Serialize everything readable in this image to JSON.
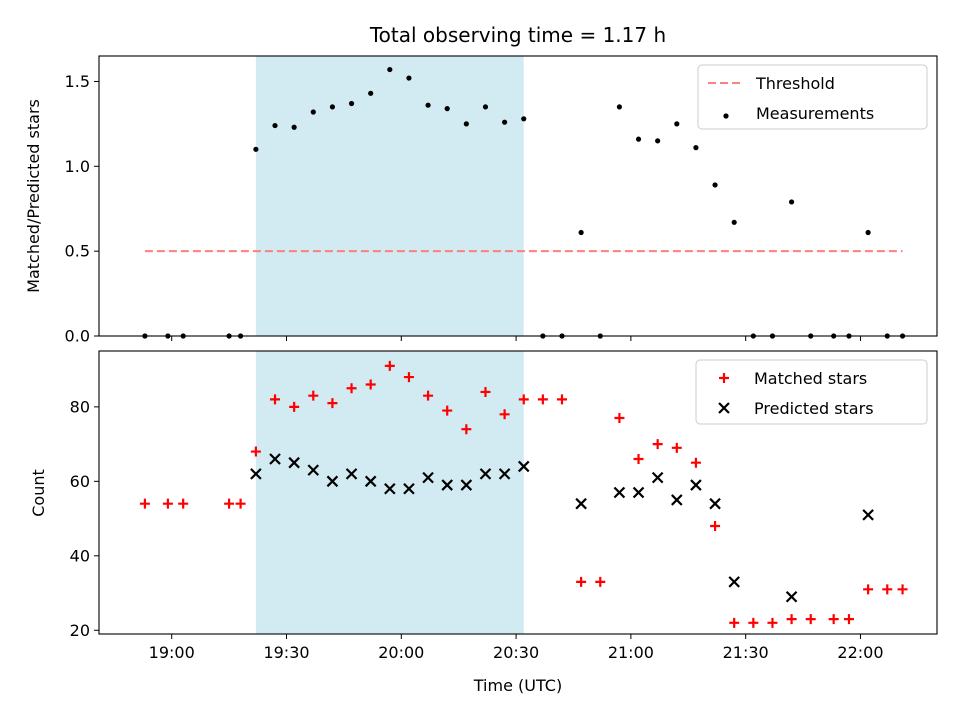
{
  "chart_data": [
    {
      "type": "scatter",
      "title": "Total observing time = 1.17 h",
      "xlabel": "",
      "ylabel": "Matched/Predicted stars",
      "xlim": [
        "18:41",
        "22:20"
      ],
      "ylim": [
        0,
        1.65
      ],
      "yticks": [
        "0.0",
        "0.5",
        "1.0",
        "1.5"
      ],
      "highlight_span": [
        "19:22",
        "20:32"
      ],
      "highlight_color": "#add8e6",
      "legend": {
        "position": "top-right",
        "entries": [
          "Threshold",
          "Measurements"
        ]
      },
      "series": [
        {
          "name": "Threshold",
          "kind": "dashed-line",
          "color": "#ff7f7f",
          "x": [
            "18:53",
            "22:11"
          ],
          "y": [
            0.5,
            0.5
          ]
        },
        {
          "name": "Measurements",
          "kind": "points",
          "color": "#000000",
          "x": [
            "18:53",
            "18:59",
            "19:03",
            "19:15",
            "19:18",
            "19:22",
            "19:27",
            "19:32",
            "19:37",
            "19:42",
            "19:47",
            "19:52",
            "19:57",
            "20:02",
            "20:07",
            "20:12",
            "20:17",
            "20:22",
            "20:27",
            "20:32",
            "20:37",
            "20:42",
            "20:47",
            "20:52",
            "20:57",
            "21:02",
            "21:07",
            "21:12",
            "21:17",
            "21:22",
            "21:27",
            "21:32",
            "21:37",
            "21:42",
            "21:47",
            "21:53",
            "21:57",
            "22:02",
            "22:07",
            "22:11"
          ],
          "y": [
            0,
            0,
            0,
            0,
            0,
            1.1,
            1.24,
            1.23,
            1.32,
            1.35,
            1.37,
            1.43,
            1.57,
            1.52,
            1.36,
            1.34,
            1.25,
            1.35,
            1.26,
            1.28,
            0,
            0,
            0.61,
            0,
            1.35,
            1.16,
            1.15,
            1.25,
            1.11,
            0.89,
            0.67,
            0,
            0,
            0.79,
            0,
            0,
            0,
            0.61,
            0,
            0
          ]
        }
      ]
    },
    {
      "type": "scatter",
      "title": "",
      "xlabel": "Time (UTC)",
      "ylabel": "Count",
      "xlim": [
        "18:41",
        "22:20"
      ],
      "ylim": [
        19,
        95
      ],
      "xticks": [
        "19:00",
        "19:30",
        "20:00",
        "20:30",
        "21:00",
        "21:30",
        "22:00"
      ],
      "yticks": [
        "20",
        "40",
        "60",
        "80"
      ],
      "highlight_span": [
        "19:22",
        "20:32"
      ],
      "highlight_color": "#add8e6",
      "legend": {
        "position": "top-right",
        "entries": [
          "Matched stars",
          "Predicted stars"
        ]
      },
      "series": [
        {
          "name": "Matched stars",
          "kind": "plus",
          "color": "#ff0000",
          "x": [
            "18:53",
            "18:59",
            "19:03",
            "19:15",
            "19:18",
            "19:22",
            "19:27",
            "19:32",
            "19:37",
            "19:42",
            "19:47",
            "19:52",
            "19:57",
            "20:02",
            "20:07",
            "20:12",
            "20:17",
            "20:22",
            "20:27",
            "20:32",
            "20:37",
            "20:42",
            "20:47",
            "20:52",
            "20:57",
            "21:02",
            "21:07",
            "21:12",
            "21:17",
            "21:22",
            "21:27",
            "21:32",
            "21:37",
            "21:42",
            "21:47",
            "21:53",
            "21:57",
            "22:02",
            "22:07",
            "22:11"
          ],
          "y": [
            54,
            54,
            54,
            54,
            54,
            68,
            82,
            80,
            83,
            81,
            85,
            86,
            91,
            88,
            83,
            79,
            74,
            84,
            78,
            82,
            82,
            82,
            33,
            33,
            77,
            66,
            70,
            69,
            65,
            48,
            22,
            22,
            22,
            23,
            23,
            23,
            23,
            31,
            31,
            31
          ]
        },
        {
          "name": "Predicted stars",
          "kind": "x",
          "color": "#000000",
          "x": [
            "19:22",
            "19:27",
            "19:32",
            "19:37",
            "19:42",
            "19:47",
            "19:52",
            "19:57",
            "20:02",
            "20:07",
            "20:12",
            "20:17",
            "20:22",
            "20:27",
            "20:32",
            "20:47",
            "20:57",
            "21:02",
            "21:07",
            "21:12",
            "21:17",
            "21:22",
            "21:27",
            "21:42",
            "22:02"
          ],
          "y": [
            62,
            66,
            65,
            63,
            60,
            62,
            60,
            58,
            58,
            61,
            59,
            59,
            62,
            62,
            64,
            54,
            57,
            57,
            61,
            55,
            59,
            54,
            33,
            29,
            51
          ]
        }
      ]
    }
  ]
}
